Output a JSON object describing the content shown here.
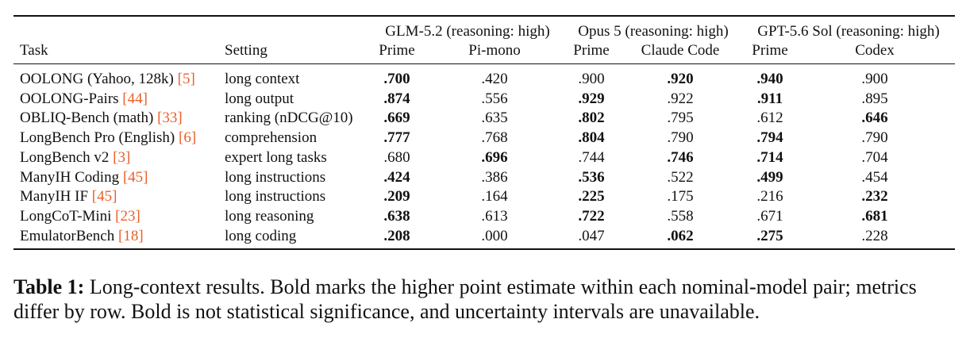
{
  "table": {
    "headers": {
      "task": "Task",
      "setting": "Setting",
      "groups": [
        {
          "name": "GLM-5.2 (reasoning: high)",
          "sub": [
            "Prime",
            "Pi-mono"
          ]
        },
        {
          "name": "Opus 5 (reasoning: high)",
          "sub": [
            "Prime",
            "Claude Code"
          ]
        },
        {
          "name": "GPT-5.6 Sol (reasoning: high)",
          "sub": [
            "Prime",
            "Codex"
          ]
        }
      ]
    },
    "rows": [
      {
        "task": "OOLONG (Yahoo, 128k)",
        "ref": "[5]",
        "setting": "long context",
        "values": [
          ".700",
          ".420",
          ".900",
          ".920",
          ".940",
          ".900"
        ],
        "bold": [
          true,
          false,
          false,
          true,
          true,
          false
        ]
      },
      {
        "task": "OOLONG-Pairs",
        "ref": "[44]",
        "setting": "long output",
        "values": [
          ".874",
          ".556",
          ".929",
          ".922",
          ".911",
          ".895"
        ],
        "bold": [
          true,
          false,
          true,
          false,
          true,
          false
        ]
      },
      {
        "task": "OBLIQ-Bench (math)",
        "ref": "[33]",
        "setting": "ranking (nDCG@10)",
        "values": [
          ".669",
          ".635",
          ".802",
          ".795",
          ".612",
          ".646"
        ],
        "bold": [
          true,
          false,
          true,
          false,
          false,
          true
        ]
      },
      {
        "task": "LongBench Pro (English)",
        "ref": "[6]",
        "setting": "comprehension",
        "values": [
          ".777",
          ".768",
          ".804",
          ".790",
          ".794",
          ".790"
        ],
        "bold": [
          true,
          false,
          true,
          false,
          true,
          false
        ]
      },
      {
        "task": "LongBench v2",
        "ref": "[3]",
        "setting": "expert long tasks",
        "values": [
          ".680",
          ".696",
          ".744",
          ".746",
          ".714",
          ".704"
        ],
        "bold": [
          false,
          true,
          false,
          true,
          true,
          false
        ]
      },
      {
        "task": "ManyIH Coding",
        "ref": "[45]",
        "setting": "long instructions",
        "values": [
          ".424",
          ".386",
          ".536",
          ".522",
          ".499",
          ".454"
        ],
        "bold": [
          true,
          false,
          true,
          false,
          true,
          false
        ]
      },
      {
        "task": "ManyIH IF",
        "ref": "[45]",
        "setting": "long instructions",
        "values": [
          ".209",
          ".164",
          ".225",
          ".175",
          ".216",
          ".232"
        ],
        "bold": [
          true,
          false,
          true,
          false,
          false,
          true
        ]
      },
      {
        "task": "LongCoT-Mini",
        "ref": "[23]",
        "setting": "long reasoning",
        "values": [
          ".638",
          ".613",
          ".722",
          ".558",
          ".671",
          ".681"
        ],
        "bold": [
          true,
          false,
          true,
          false,
          false,
          true
        ]
      },
      {
        "task": "EmulatorBench",
        "ref": "[18]",
        "setting": "long coding",
        "values": [
          ".208",
          ".000",
          ".047",
          ".062",
          ".275",
          ".228"
        ],
        "bold": [
          true,
          false,
          false,
          true,
          true,
          false
        ]
      }
    ]
  },
  "caption": {
    "label": "Table 1:",
    "text": " Long-context results. Bold marks the higher point estimate within each nominal-model pair; metrics differ by row. Bold is not statistical significance, and uncertainty intervals are unavailable."
  },
  "colors": {
    "reference_link": "#e8602a",
    "text": "#111111"
  }
}
